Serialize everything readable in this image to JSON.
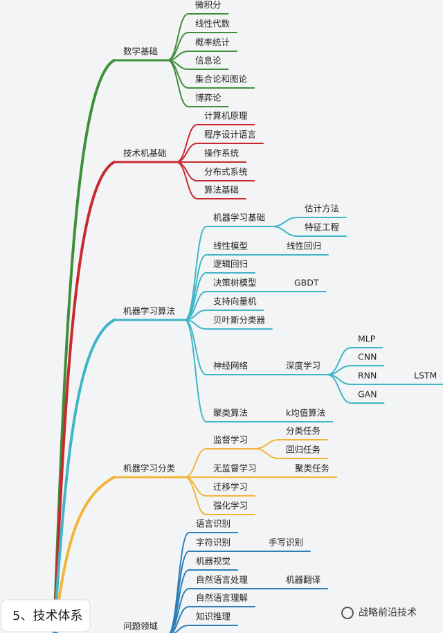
{
  "caption": "5、技术体系",
  "watermark": "战略前沿技术",
  "branches": [
    {
      "label": "数学基础",
      "color": "#3f8f3a",
      "children": [
        {
          "label": "微积分"
        },
        {
          "label": "线性代数"
        },
        {
          "label": "概率统计"
        },
        {
          "label": "信息论"
        },
        {
          "label": "集合论和图论"
        },
        {
          "label": "博弈论"
        }
      ]
    },
    {
      "label": "技术机基础",
      "color": "#c8282e",
      "children": [
        {
          "label": "计算机原理"
        },
        {
          "label": "程序设计语言"
        },
        {
          "label": "操作系统"
        },
        {
          "label": "分布式系统"
        },
        {
          "label": "算法基础"
        }
      ]
    },
    {
      "label": "机器学习算法",
      "color": "#3fb5c8",
      "children": [
        {
          "label": "机器学习基础",
          "children": [
            {
              "label": "估计方法"
            },
            {
              "label": "特征工程"
            }
          ]
        },
        {
          "label": "线性模型",
          "children": [
            {
              "label": "线性回归"
            }
          ]
        },
        {
          "label": "逻辑回归"
        },
        {
          "label": "决策树模型",
          "children": [
            {
              "label": "GBDT"
            }
          ]
        },
        {
          "label": "支持向量机"
        },
        {
          "label": "贝叶斯分类器"
        },
        {
          "label": "神经网络",
          "children": [
            {
              "label": "深度学习",
              "children": [
                {
                  "label": "MLP"
                },
                {
                  "label": "CNN"
                },
                {
                  "label": "RNN",
                  "children": [
                    {
                      "label": "LSTM"
                    }
                  ]
                },
                {
                  "label": "GAN"
                }
              ]
            }
          ]
        },
        {
          "label": "聚类算法",
          "children": [
            {
              "label": "k均值算法"
            }
          ]
        }
      ]
    },
    {
      "label": "机器学习分类",
      "color": "#f2b53a",
      "children": [
        {
          "label": "监督学习",
          "children": [
            {
              "label": "分类任务"
            },
            {
              "label": "回归任务"
            }
          ]
        },
        {
          "label": "无监督学习",
          "children": [
            {
              "label": "聚类任务"
            }
          ]
        },
        {
          "label": "迁移学习"
        },
        {
          "label": "强化学习"
        }
      ]
    },
    {
      "label": "问题领域",
      "color": "#2e7fb8",
      "children": [
        {
          "label": "语言识别"
        },
        {
          "label": "字符识别",
          "children": [
            {
              "label": "手写识别"
            }
          ]
        },
        {
          "label": "机器视觉"
        },
        {
          "label": "自然语言处理",
          "children": [
            {
              "label": "机器翻译"
            }
          ]
        },
        {
          "label": "自然语言理解"
        },
        {
          "label": "知识推理"
        }
      ]
    }
  ]
}
